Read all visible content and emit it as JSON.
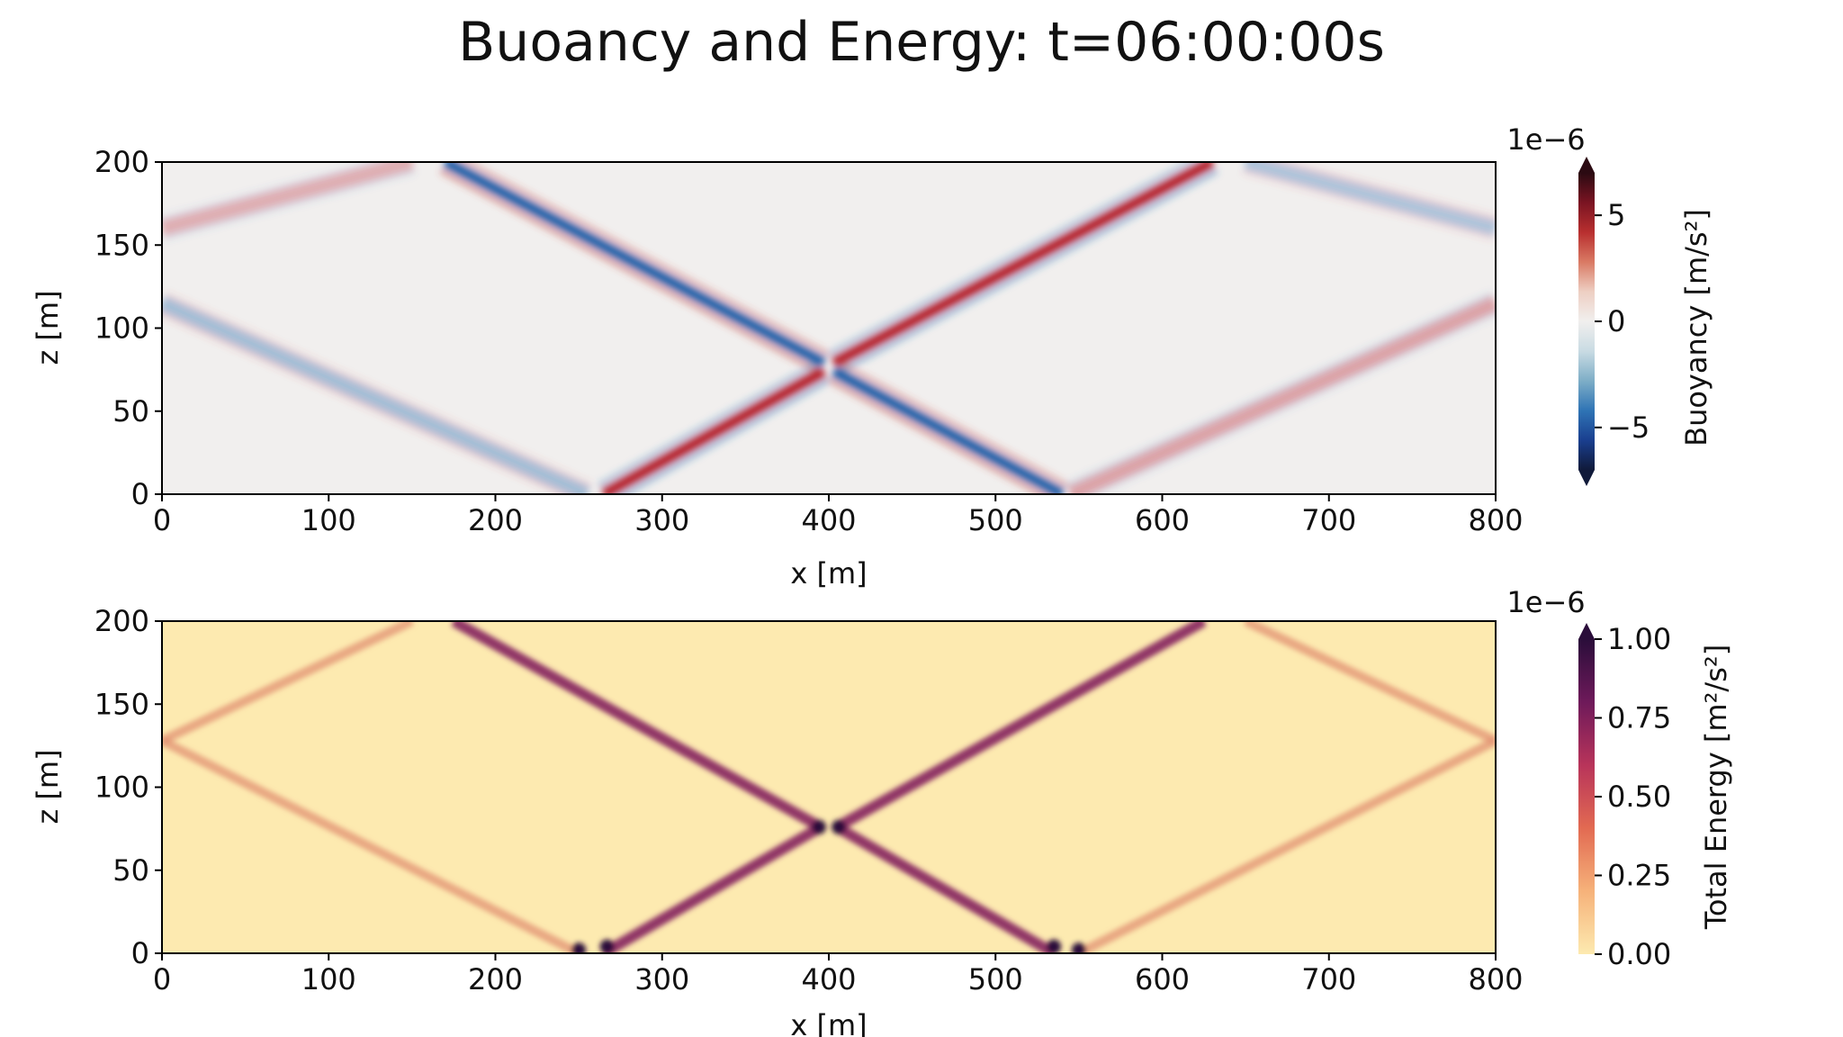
{
  "figure": {
    "title": "Buoancy and Energy:  t=06:00:00s"
  },
  "colors": {
    "buoyancy_cmap": [
      "#2b0a12",
      "#7a1422",
      "#b82f2f",
      "#d97a64",
      "#eecfc3",
      "#f1efee",
      "#c9dbe3",
      "#7eaec7",
      "#2f74b5",
      "#1a3f8f",
      "#101a3a"
    ],
    "energy_cmap": [
      "#fdeab0",
      "#f6b27a",
      "#e26a52",
      "#b8345a",
      "#6e1a5a",
      "#2a0d3a"
    ],
    "axis": "#000000"
  },
  "chart_data": [
    {
      "type": "heatmap",
      "name": "buoyancy",
      "xlabel": "x [m]",
      "ylabel": "z [m]",
      "xlim": [
        0,
        800
      ],
      "ylim": [
        0,
        200
      ],
      "xticks": [
        0,
        100,
        200,
        300,
        400,
        500,
        600,
        700,
        800
      ],
      "yticks": [
        0,
        50,
        100,
        150,
        200
      ],
      "colorbar": {
        "label": "Buoyancy [m/s²]",
        "scale_label": "1e−6",
        "range": [
          -7,
          7
        ],
        "ticks": [
          -5,
          0,
          5
        ],
        "tick_labels": [
          "−5",
          "0",
          "5"
        ],
        "extend": "both"
      },
      "beams": [
        {
          "from": [
            170,
            200
          ],
          "to": [
            397,
            79
          ],
          "sign": -1,
          "strength": 1.0
        },
        {
          "from": [
            403,
            79
          ],
          "to": [
            630,
            200
          ],
          "sign": 1,
          "strength": 1.0
        },
        {
          "from": [
            265,
            0
          ],
          "to": [
            397,
            74
          ],
          "sign": 1,
          "strength": 1.0
        },
        {
          "from": [
            403,
            74
          ],
          "to": [
            540,
            0
          ],
          "sign": -1,
          "strength": 1.0
        },
        {
          "from": [
            0,
            115
          ],
          "to": [
            255,
            0
          ],
          "sign": -1,
          "strength": 0.35
        },
        {
          "from": [
            800,
            115
          ],
          "to": [
            545,
            0
          ],
          "sign": 1,
          "strength": 0.35
        },
        {
          "from": [
            0,
            160
          ],
          "to": [
            150,
            200
          ],
          "sign": 1,
          "strength": 0.3
        },
        {
          "from": [
            800,
            160
          ],
          "to": [
            650,
            200
          ],
          "sign": -1,
          "strength": 0.3
        }
      ]
    },
    {
      "type": "heatmap",
      "name": "energy",
      "xlabel": "x [m]",
      "ylabel": "z [m]",
      "xlim": [
        0,
        800
      ],
      "ylim": [
        0,
        200
      ],
      "xticks": [
        0,
        100,
        200,
        300,
        400,
        500,
        600,
        700,
        800
      ],
      "yticks": [
        0,
        50,
        100,
        150,
        200
      ],
      "colorbar": {
        "label": "Total Energy [m²/s²]",
        "scale_label": "1e−6",
        "range": [
          0,
          1
        ],
        "ticks": [
          0,
          0.25,
          0.5,
          0.75,
          1.0
        ],
        "tick_labels": [
          "0.00",
          "0.25",
          "0.50",
          "0.75",
          "1.00"
        ],
        "extend": "max"
      },
      "beams": [
        {
          "from": [
            175,
            200
          ],
          "to": [
            395,
            76
          ],
          "strength": 0.9
        },
        {
          "from": [
            405,
            76
          ],
          "to": [
            625,
            200
          ],
          "strength": 0.9
        },
        {
          "from": [
            265,
            0
          ],
          "to": [
            395,
            76
          ],
          "strength": 0.9
        },
        {
          "from": [
            405,
            76
          ],
          "to": [
            535,
            0
          ],
          "strength": 0.9
        },
        {
          "from": [
            0,
            128
          ],
          "to": [
            250,
            0
          ],
          "strength": 0.45
        },
        {
          "from": [
            800,
            128
          ],
          "to": [
            550,
            0
          ],
          "strength": 0.45
        },
        {
          "from": [
            0,
            128
          ],
          "to": [
            150,
            200
          ],
          "strength": 0.4
        },
        {
          "from": [
            800,
            128
          ],
          "to": [
            650,
            200
          ],
          "strength": 0.4
        }
      ]
    }
  ]
}
